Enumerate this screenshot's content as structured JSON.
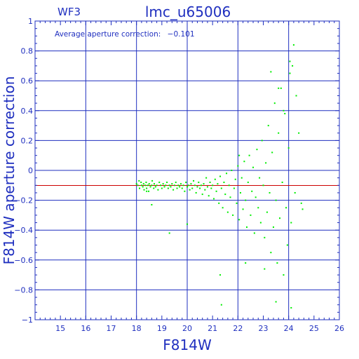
{
  "chart_data": {
    "type": "scatter",
    "chip": "WF3",
    "title": "lmc_u65006",
    "annotation_label": "Average aperture correction:",
    "annotation_value": "−0.101",
    "xlabel": "F814W",
    "ylabel": "F814W aperture correction",
    "xlim": [
      14,
      26
    ],
    "ylim": [
      -1,
      1
    ],
    "x_ticks": [
      15,
      16,
      17,
      18,
      19,
      20,
      21,
      22,
      23,
      24,
      25,
      26
    ],
    "y_ticks": [
      -1,
      -0.8,
      -0.6,
      -0.4,
      -0.2,
      0,
      0.2,
      0.4,
      0.6,
      0.8,
      1
    ],
    "y_tick_labels": [
      "−1",
      "−0.8",
      "−0.6",
      "−0.4",
      "−0.2",
      "0",
      "0.2",
      "0.4",
      "0.6",
      "0.8",
      "1"
    ],
    "grid": true,
    "reference_line": {
      "y": -0.101,
      "color": "#cc0000"
    },
    "colors": {
      "axes": "#1f2fbf",
      "points": "#00ee00",
      "line": "#cc0000"
    },
    "series": [
      {
        "points": [
          [
            18.0,
            -0.09
          ],
          [
            18.05,
            -0.1
          ],
          [
            18.1,
            -0.07
          ],
          [
            18.12,
            -0.12
          ],
          [
            18.18,
            -0.08
          ],
          [
            18.2,
            -0.1
          ],
          [
            18.25,
            -0.11
          ],
          [
            18.28,
            -0.09
          ],
          [
            18.3,
            -0.13
          ],
          [
            18.35,
            -0.1
          ],
          [
            18.38,
            -0.08
          ],
          [
            18.4,
            -0.12
          ],
          [
            18.45,
            -0.1
          ],
          [
            18.48,
            -0.14
          ],
          [
            18.5,
            -0.09
          ],
          [
            18.55,
            -0.11
          ],
          [
            18.6,
            -0.1
          ],
          [
            18.62,
            -0.07
          ],
          [
            18.68,
            -0.12
          ],
          [
            18.7,
            -0.09
          ],
          [
            18.75,
            -0.11
          ],
          [
            18.8,
            -0.1
          ],
          [
            18.85,
            -0.13
          ],
          [
            18.9,
            -0.08
          ],
          [
            18.95,
            -0.1
          ],
          [
            19.0,
            -0.12
          ],
          [
            19.05,
            -0.09
          ],
          [
            19.1,
            -0.11
          ],
          [
            19.15,
            -0.1
          ],
          [
            19.2,
            -0.08
          ],
          [
            19.25,
            -0.12
          ],
          [
            19.3,
            -0.1
          ],
          [
            19.35,
            -0.11
          ],
          [
            19.4,
            -0.09
          ],
          [
            19.45,
            -0.13
          ],
          [
            19.5,
            -0.1
          ],
          [
            19.55,
            -0.08
          ],
          [
            19.6,
            -0.12
          ],
          [
            19.65,
            -0.1
          ],
          [
            19.7,
            -0.11
          ],
          [
            19.75,
            -0.09
          ],
          [
            19.8,
            -0.12
          ],
          [
            19.85,
            -0.1
          ],
          [
            19.9,
            -0.14
          ],
          [
            19.95,
            -0.08
          ],
          [
            20.0,
            -0.11
          ],
          [
            20.05,
            -0.1
          ],
          [
            20.1,
            -0.13
          ],
          [
            20.15,
            -0.09
          ],
          [
            20.2,
            -0.12
          ],
          [
            20.25,
            -0.07
          ],
          [
            20.3,
            -0.1
          ],
          [
            20.35,
            -0.15
          ],
          [
            20.4,
            -0.11
          ],
          [
            20.45,
            -0.08
          ],
          [
            20.5,
            -0.12
          ],
          [
            20.55,
            -0.1
          ],
          [
            20.6,
            -0.16
          ],
          [
            20.65,
            -0.09
          ],
          [
            20.7,
            -0.13
          ],
          [
            20.75,
            -0.05
          ],
          [
            20.8,
            -0.11
          ],
          [
            20.85,
            -0.17
          ],
          [
            20.9,
            -0.08
          ],
          [
            20.95,
            -0.12
          ],
          [
            21.0,
            -0.1
          ],
          [
            21.05,
            -0.19
          ],
          [
            21.1,
            -0.06
          ],
          [
            21.15,
            -0.14
          ],
          [
            21.2,
            -0.09
          ],
          [
            21.25,
            -0.22
          ],
          [
            21.3,
            -0.04
          ],
          [
            21.35,
            -0.12
          ],
          [
            21.4,
            -0.25
          ],
          [
            21.45,
            -0.08
          ],
          [
            21.5,
            -0.16
          ],
          [
            21.55,
            -0.02
          ],
          [
            21.6,
            -0.28
          ],
          [
            21.65,
            -0.1
          ],
          [
            21.7,
            -0.18
          ],
          [
            21.75,
            0.0
          ],
          [
            21.8,
            -0.3
          ],
          [
            21.85,
            -0.12
          ],
          [
            21.9,
            -0.06
          ],
          [
            21.95,
            -0.22
          ],
          [
            22.0,
            0.03
          ],
          [
            22.05,
            -0.33
          ],
          [
            22.1,
            -0.15
          ],
          [
            22.15,
            -0.05
          ],
          [
            22.2,
            -0.26
          ],
          [
            22.25,
            0.06
          ],
          [
            22.3,
            -0.2
          ],
          [
            22.35,
            -0.38
          ],
          [
            22.4,
            -0.08
          ],
          [
            22.45,
            0.1
          ],
          [
            22.5,
            -0.3
          ],
          [
            22.55,
            -0.14
          ],
          [
            22.6,
            0.02
          ],
          [
            22.65,
            -0.42
          ],
          [
            22.7,
            -0.18
          ],
          [
            22.75,
            0.14
          ],
          [
            22.8,
            -0.25
          ],
          [
            22.85,
            -0.05
          ],
          [
            22.9,
            -0.35
          ],
          [
            22.95,
            0.2
          ],
          [
            23.0,
            -0.1
          ],
          [
            23.05,
            -0.45
          ],
          [
            23.1,
            0.05
          ],
          [
            23.15,
            -0.28
          ],
          [
            23.2,
            0.3
          ],
          [
            23.25,
            -0.15
          ],
          [
            23.3,
            -0.55
          ],
          [
            23.35,
            0.12
          ],
          [
            23.4,
            -0.38
          ],
          [
            23.45,
            0.45
          ],
          [
            23.5,
            -0.2
          ],
          [
            23.55,
            -0.62
          ],
          [
            23.6,
            0.25
          ],
          [
            23.65,
            -0.32
          ],
          [
            23.7,
            0.55
          ],
          [
            23.75,
            -0.08
          ],
          [
            23.8,
            -0.7
          ],
          [
            23.85,
            0.38
          ],
          [
            23.9,
            -0.25
          ],
          [
            23.95,
            -0.5
          ],
          [
            24.0,
            0.15
          ],
          [
            24.05,
            0.65
          ],
          [
            24.1,
            -0.35
          ],
          [
            24.15,
            0.7
          ],
          [
            24.2,
            0.84
          ],
          [
            24.25,
            -0.15
          ],
          [
            24.3,
            0.5
          ],
          [
            24.4,
            0.25
          ],
          [
            24.5,
            -0.22
          ],
          [
            24.55,
            -0.26
          ],
          [
            21.3,
            -0.7
          ],
          [
            21.35,
            -0.9
          ],
          [
            23.5,
            -0.88
          ],
          [
            24.1,
            -0.92
          ],
          [
            23.05,
            -0.66
          ],
          [
            19.3,
            -0.42
          ],
          [
            20.0,
            -0.36
          ],
          [
            18.4,
            -0.14
          ],
          [
            18.6,
            -0.23
          ],
          [
            22.3,
            -0.62
          ],
          [
            23.3,
            0.66
          ],
          [
            23.6,
            0.55
          ],
          [
            24.05,
            0.73
          ],
          [
            23.8,
            0.4
          ],
          [
            22.05,
            0.1
          ]
        ]
      }
    ]
  }
}
